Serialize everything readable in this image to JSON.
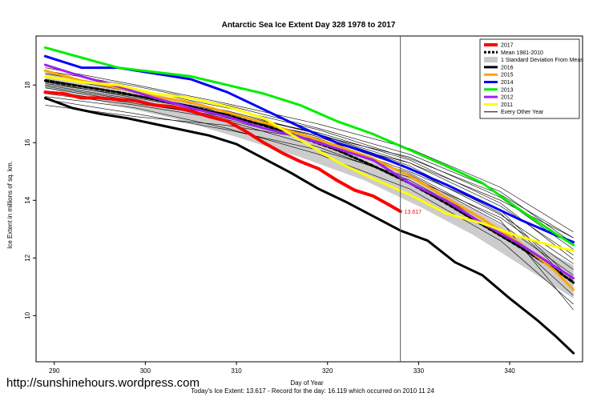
{
  "source_url": "http://sunshinehours.wordpress.com",
  "chart_data": {
    "type": "line",
    "title": "Antarctic Sea Ice Extent Day 328 1978 to 2017",
    "xlabel": "Day of Year",
    "ylabel": "Ice Extent in millions of sq. km.",
    "subtitle": "Today's Ice Extent: 13.617  -  Record for the day: 16.119 which occurred on 2010 11 24",
    "xlim": [
      288,
      348
    ],
    "ylim": [
      8.4,
      19.7
    ],
    "xticks": [
      290,
      300,
      310,
      320,
      330,
      340
    ],
    "yticks": [
      10,
      12,
      14,
      16,
      18
    ],
    "current_day": 328,
    "end_label": "13.617",
    "legend_position": "top-right",
    "legend": [
      {
        "label": "2017",
        "color": "#ff0000",
        "style": "solid",
        "width": 4
      },
      {
        "label": "Mean 1981-2010",
        "color": "#000000",
        "style": "dashed",
        "width": 3
      },
      {
        "label": "1 Standard Deviation From Mean",
        "color": "#c8c8c8",
        "style": "box",
        "width": 10
      },
      {
        "label": "2016",
        "color": "#000000",
        "style": "solid",
        "width": 3
      },
      {
        "label": "2015",
        "color": "#ffa500",
        "style": "solid",
        "width": 3
      },
      {
        "label": "2014",
        "color": "#0000ff",
        "style": "solid",
        "width": 3
      },
      {
        "label": "2013",
        "color": "#00ee00",
        "style": "solid",
        "width": 3
      },
      {
        "label": "2012",
        "color": "#a020f0",
        "style": "solid",
        "width": 3
      },
      {
        "label": "2011",
        "color": "#ffff00",
        "style": "solid",
        "width": 3
      },
      {
        "label": "Every Other Year",
        "color": "#000000",
        "style": "solid",
        "width": 1
      }
    ],
    "std_band": {
      "x": [
        289,
        296,
        303,
        310,
        317,
        324,
        330,
        336,
        342,
        347
      ],
      "high": [
        18.45,
        18.0,
        17.55,
        17.0,
        16.35,
        15.55,
        14.7,
        13.7,
        12.6,
        11.75
      ],
      "low": [
        17.9,
        17.35,
        16.85,
        16.2,
        15.5,
        14.7,
        13.8,
        12.8,
        11.6,
        10.6
      ]
    },
    "series": [
      {
        "name": "2017",
        "color": "#ff0000",
        "width": 4,
        "dash": "",
        "x": [
          289,
          291,
          293,
          295,
          297,
          299,
          301,
          303,
          305,
          307,
          309,
          311,
          313,
          315,
          317,
          319,
          321,
          323,
          325,
          327,
          328
        ],
        "y": [
          17.75,
          17.7,
          17.55,
          17.55,
          17.5,
          17.45,
          17.3,
          17.25,
          17.1,
          16.9,
          16.75,
          16.4,
          16.0,
          15.65,
          15.35,
          15.1,
          14.7,
          14.35,
          14.15,
          13.8,
          13.617
        ]
      },
      {
        "name": "Mean 1981-2010",
        "color": "#000000",
        "width": 3,
        "dash": "4,3",
        "x": [
          289,
          293,
          297,
          301,
          305,
          309,
          313,
          317,
          321,
          325,
          329,
          333,
          337,
          341,
          345,
          347
        ],
        "y": [
          18.15,
          17.95,
          17.75,
          17.5,
          17.25,
          16.95,
          16.6,
          16.2,
          15.75,
          15.2,
          14.6,
          13.9,
          13.15,
          12.4,
          11.6,
          11.15
        ]
      },
      {
        "name": "2016",
        "color": "#000000",
        "width": 3,
        "dash": "",
        "x": [
          289,
          292,
          295,
          298,
          301,
          304,
          307,
          310,
          313,
          316,
          319,
          322,
          325,
          328,
          331,
          334,
          337,
          340,
          343,
          345,
          347
        ],
        "y": [
          17.55,
          17.2,
          17.0,
          16.85,
          16.65,
          16.45,
          16.25,
          15.95,
          15.45,
          14.95,
          14.4,
          13.95,
          13.45,
          12.95,
          12.6,
          11.85,
          11.4,
          10.6,
          9.85,
          9.3,
          8.7
        ]
      },
      {
        "name": "2015",
        "color": "#ffa500",
        "width": 3,
        "dash": "",
        "x": [
          289,
          293,
          297,
          301,
          305,
          309,
          313,
          317,
          321,
          325,
          329,
          333,
          337,
          341,
          345,
          347
        ],
        "y": [
          18.5,
          18.15,
          17.9,
          17.6,
          17.4,
          17.05,
          16.7,
          16.3,
          15.9,
          15.45,
          14.85,
          14.1,
          13.35,
          12.55,
          11.55,
          10.9
        ]
      },
      {
        "name": "2014",
        "color": "#0000ff",
        "width": 3,
        "dash": "",
        "x": [
          289,
          293,
          297,
          301,
          305,
          309,
          313,
          317,
          321,
          325,
          329,
          333,
          337,
          341,
          345,
          347
        ],
        "y": [
          19.0,
          18.6,
          18.6,
          18.4,
          18.2,
          17.75,
          17.15,
          16.55,
          16.0,
          15.6,
          15.1,
          14.55,
          13.95,
          13.35,
          12.8,
          12.55
        ]
      },
      {
        "name": "2013",
        "color": "#00ee00",
        "width": 3,
        "dash": "",
        "x": [
          289,
          293,
          297,
          301,
          305,
          309,
          313,
          317,
          321,
          325,
          329,
          333,
          337,
          341,
          345,
          347
        ],
        "y": [
          19.3,
          18.95,
          18.6,
          18.45,
          18.3,
          18.0,
          17.7,
          17.3,
          16.75,
          16.3,
          15.75,
          15.2,
          14.6,
          13.7,
          12.85,
          12.45
        ]
      },
      {
        "name": "2012",
        "color": "#a020f0",
        "width": 3,
        "dash": "",
        "x": [
          289,
          293,
          297,
          301,
          305,
          309,
          313,
          317,
          321,
          325,
          329,
          333,
          337,
          341,
          345,
          347
        ],
        "y": [
          18.7,
          18.3,
          17.95,
          17.55,
          17.2,
          16.9,
          16.5,
          16.2,
          15.8,
          15.4,
          14.6,
          14.0,
          13.2,
          12.5,
          11.7,
          11.3
        ]
      },
      {
        "name": "2011",
        "color": "#ffff00",
        "width": 3,
        "dash": "",
        "x": [
          289,
          293,
          297,
          301,
          305,
          309,
          313,
          317,
          321,
          325,
          329,
          333,
          337,
          341,
          345,
          347
        ],
        "y": [
          18.3,
          18.1,
          18.0,
          17.7,
          17.55,
          17.25,
          16.85,
          16.1,
          15.35,
          14.75,
          14.2,
          13.55,
          13.2,
          12.75,
          12.4,
          12.25
        ]
      }
    ],
    "other_years": [
      {
        "x": [
          289,
          299,
          309,
          319,
          329,
          339,
          347
        ],
        "y": [
          18.2,
          17.65,
          17.05,
          16.3,
          15.3,
          13.8,
          12.1
        ]
      },
      {
        "x": [
          289,
          299,
          309,
          319,
          329,
          339,
          347
        ],
        "y": [
          17.9,
          17.4,
          16.85,
          16.05,
          14.9,
          13.2,
          11.4
        ]
      },
      {
        "x": [
          289,
          299,
          309,
          319,
          329,
          339,
          347
        ],
        "y": [
          18.4,
          17.85,
          17.2,
          16.45,
          15.45,
          14.2,
          12.7
        ]
      },
      {
        "x": [
          289,
          299,
          309,
          319,
          329,
          339,
          347
        ],
        "y": [
          17.3,
          16.9,
          16.6,
          16.1,
          15.3,
          14.0,
          12.7
        ]
      },
      {
        "x": [
          289,
          299,
          309,
          319,
          329,
          339,
          347
        ],
        "y": [
          18.0,
          17.5,
          16.75,
          15.85,
          14.7,
          13.0,
          10.7
        ]
      },
      {
        "x": [
          289,
          299,
          309,
          319,
          329,
          339,
          347
        ],
        "y": [
          18.6,
          18.0,
          17.35,
          16.65,
          15.8,
          14.45,
          12.9
        ]
      },
      {
        "x": [
          289,
          299,
          309,
          319,
          329,
          339,
          347
        ],
        "y": [
          17.6,
          17.2,
          16.5,
          15.6,
          14.4,
          12.6,
          10.4
        ]
      },
      {
        "x": [
          289,
          299,
          309,
          319,
          329,
          339,
          347
        ],
        "y": [
          18.1,
          17.55,
          17.0,
          16.2,
          15.1,
          13.5,
          11.8
        ]
      },
      {
        "x": [
          289,
          299,
          309,
          319,
          329,
          339,
          347
        ],
        "y": [
          17.8,
          17.35,
          16.9,
          16.25,
          15.5,
          14.1,
          12.3
        ]
      },
      {
        "x": [
          289,
          299,
          309,
          319,
          329,
          339,
          347
        ],
        "y": [
          18.3,
          17.75,
          17.1,
          16.3,
          15.2,
          13.55,
          11.1
        ]
      },
      {
        "x": [
          289,
          299,
          309,
          319,
          329,
          339,
          347
        ],
        "y": [
          17.5,
          17.0,
          16.45,
          15.75,
          14.8,
          13.4,
          11.6
        ]
      },
      {
        "x": [
          289,
          299,
          309,
          319,
          329,
          339,
          347
        ],
        "y": [
          18.5,
          17.95,
          17.3,
          16.5,
          15.6,
          14.3,
          12.5
        ]
      },
      {
        "x": [
          289,
          299,
          309,
          319,
          329,
          339,
          347
        ],
        "y": [
          17.7,
          17.3,
          16.8,
          16.0,
          14.95,
          13.3,
          10.2
        ]
      },
      {
        "x": [
          289,
          299,
          309,
          319,
          329,
          339,
          347
        ],
        "y": [
          18.05,
          17.6,
          17.0,
          16.35,
          15.4,
          13.9,
          11.95
        ]
      },
      {
        "x": [
          289,
          299,
          309,
          319,
          329,
          339,
          347
        ],
        "y": [
          17.95,
          17.45,
          16.95,
          16.15,
          15.0,
          13.65,
          11.2
        ]
      }
    ]
  }
}
